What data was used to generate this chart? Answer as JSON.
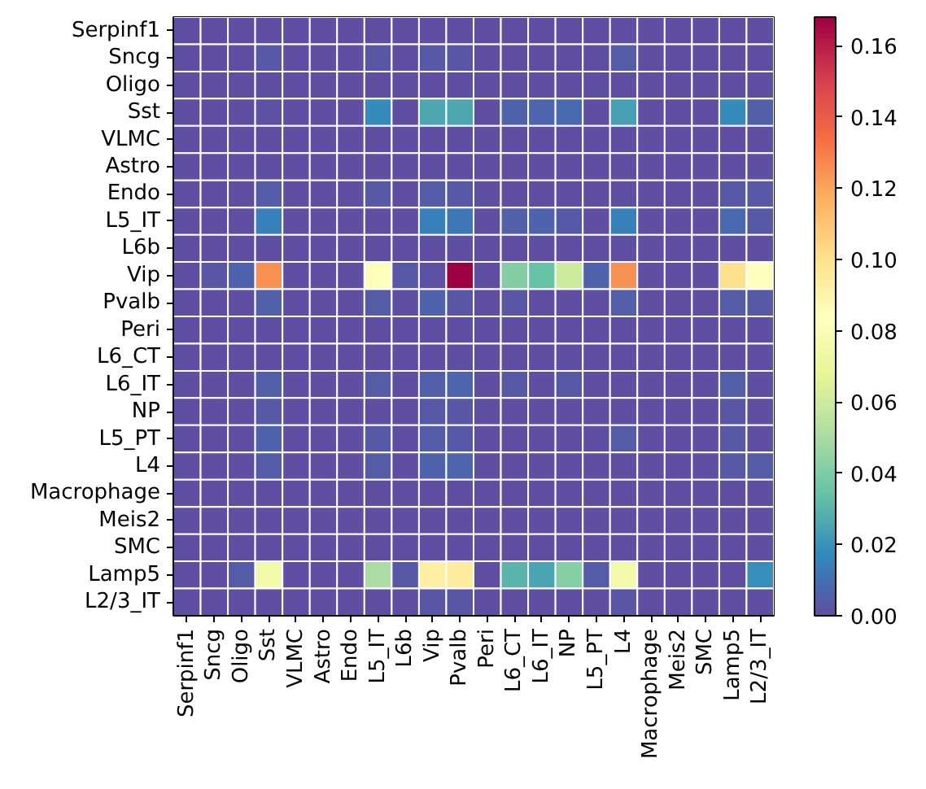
{
  "chart_data": {
    "type": "heatmap",
    "categories": [
      "Serpinf1",
      "Sncg",
      "Oligo",
      "Sst",
      "VLMC",
      "Astro",
      "Endo",
      "L5_IT",
      "L6b",
      "Vip",
      "Pvalb",
      "Peri",
      "L6_CT",
      "L6_IT",
      "NP",
      "L5_PT",
      "L4",
      "Macrophage",
      "Meis2",
      "SMC",
      "Lamp5",
      "L2/3_IT"
    ],
    "y_categories": [
      "Serpinf1",
      "Sncg",
      "Oligo",
      "Sst",
      "VLMC",
      "Astro",
      "Endo",
      "L5_IT",
      "L6b",
      "Vip",
      "Pvalb",
      "Peri",
      "L6_CT",
      "L6_IT",
      "NP",
      "L5_PT",
      "L4",
      "Macrophage",
      "Meis2",
      "SMC",
      "Lamp5",
      "L2/3_IT"
    ],
    "cells": [
      [
        0,
        0,
        0,
        0,
        0,
        0,
        0,
        0,
        0,
        0,
        0,
        0,
        0,
        0,
        0,
        0,
        0,
        0,
        0,
        0,
        0,
        0
      ],
      [
        0,
        0,
        0,
        0.003,
        0,
        0,
        0,
        0.002,
        0,
        0.003,
        0.002,
        0,
        0,
        0,
        0,
        0,
        0.004,
        0,
        0,
        0,
        0,
        0
      ],
      [
        0,
        0,
        0,
        0,
        0,
        0,
        0,
        0,
        0,
        0,
        0,
        0,
        0,
        0,
        0,
        0,
        0,
        0,
        0,
        0,
        0,
        0
      ],
      [
        0,
        0,
        0,
        0.001,
        0,
        0,
        0,
        0.018,
        0,
        0.026,
        0.026,
        0,
        0.006,
        0.007,
        0.008,
        0,
        0.024,
        0,
        0,
        0,
        0.018,
        0.005
      ],
      [
        0,
        0,
        0,
        0,
        0,
        0,
        0,
        0,
        0,
        0,
        0,
        0,
        0,
        0,
        0,
        0,
        0,
        0,
        0,
        0,
        0,
        0
      ],
      [
        0,
        0,
        0,
        0,
        0,
        0,
        0,
        0,
        0,
        0,
        0,
        0,
        0,
        0,
        0,
        0,
        0,
        0,
        0,
        0,
        0,
        0
      ],
      [
        0,
        0,
        0,
        0.004,
        0,
        0,
        0,
        0.003,
        0,
        0.004,
        0.003,
        0,
        0,
        0,
        0,
        0,
        0,
        0,
        0,
        0,
        0.003,
        0.003
      ],
      [
        0,
        0,
        0,
        0.015,
        0,
        0,
        0,
        0,
        0,
        0.015,
        0.012,
        0,
        0.005,
        0.006,
        0.003,
        0,
        0.015,
        0,
        0,
        0,
        0.008,
        0.003
      ],
      [
        0,
        0,
        0,
        0,
        0,
        0,
        0,
        0,
        0,
        0,
        0,
        0,
        0,
        0,
        0,
        0,
        0,
        0,
        0,
        0,
        0,
        0
      ],
      [
        0,
        0.002,
        0.006,
        0.125,
        0,
        0,
        0,
        0.082,
        0.003,
        0.001,
        0.168,
        0,
        0.041,
        0.034,
        0.06,
        0.006,
        0.125,
        0,
        0,
        0,
        0.1,
        0.083
      ],
      [
        0,
        0,
        0,
        0.005,
        0,
        0,
        0,
        0.004,
        0,
        0.006,
        0.002,
        0,
        0.002,
        0,
        0,
        0,
        0.005,
        0,
        0,
        0,
        0.004,
        0.003
      ],
      [
        0,
        0,
        0,
        0,
        0,
        0,
        0,
        0,
        0,
        0,
        0,
        0,
        0,
        0,
        0,
        0,
        0,
        0,
        0,
        0,
        0,
        0
      ],
      [
        0,
        0,
        0,
        0,
        0,
        0,
        0,
        0,
        0,
        0,
        0,
        0,
        0,
        0,
        0,
        0,
        0,
        0,
        0,
        0,
        0,
        0
      ],
      [
        0,
        0,
        0,
        0.005,
        0,
        0,
        0,
        0.004,
        0,
        0.005,
        0.007,
        0,
        0.003,
        0,
        0.003,
        0,
        0,
        0,
        0,
        0,
        0.005,
        0
      ],
      [
        0,
        0,
        0,
        0.003,
        0,
        0,
        0,
        0,
        0,
        0.003,
        0.002,
        0,
        0,
        0,
        0,
        0,
        0,
        0,
        0,
        0,
        0.002,
        0
      ],
      [
        0,
        0,
        0,
        0.006,
        0,
        0,
        0,
        0.003,
        0,
        0.004,
        0.003,
        0,
        0,
        0,
        0,
        0,
        0.004,
        0,
        0,
        0,
        0.003,
        0
      ],
      [
        0,
        0,
        0,
        0.004,
        0,
        0,
        0,
        0.004,
        0,
        0.006,
        0.007,
        0,
        0,
        0,
        0,
        0,
        0,
        0,
        0,
        0,
        0.003,
        0.004
      ],
      [
        0,
        0,
        0,
        0,
        0,
        0,
        0,
        0,
        0,
        0,
        0,
        0,
        0,
        0,
        0,
        0,
        0,
        0,
        0,
        0,
        0,
        0
      ],
      [
        0,
        0,
        0,
        0,
        0,
        0,
        0,
        0,
        0,
        0,
        0,
        0,
        0,
        0,
        0,
        0,
        0,
        0,
        0,
        0,
        0,
        0
      ],
      [
        0,
        0,
        0,
        0,
        0,
        0,
        0,
        0,
        0,
        0,
        0,
        0,
        0,
        0,
        0,
        0,
        0,
        0,
        0,
        0,
        0,
        0
      ],
      [
        0,
        0,
        0.004,
        0.075,
        0,
        0,
        0,
        0.05,
        0.003,
        0.093,
        0.095,
        0,
        0.03,
        0.025,
        0.042,
        0.004,
        0.075,
        0,
        0,
        0,
        0,
        0.019
      ],
      [
        0,
        0,
        0,
        0,
        0,
        0,
        0,
        0,
        0,
        0.002,
        0.002,
        0,
        0,
        0,
        0,
        0,
        0.002,
        0,
        0,
        0,
        0,
        0
      ]
    ],
    "clim": [
      0,
      0.168
    ],
    "cticks": [
      {
        "value": 0,
        "label": "0.00"
      },
      0.02,
      0.04,
      0.06,
      0.08,
      {
        "value": 0.1,
        "label": "0.10"
      },
      0.12,
      0.14,
      0.16
    ]
  }
}
